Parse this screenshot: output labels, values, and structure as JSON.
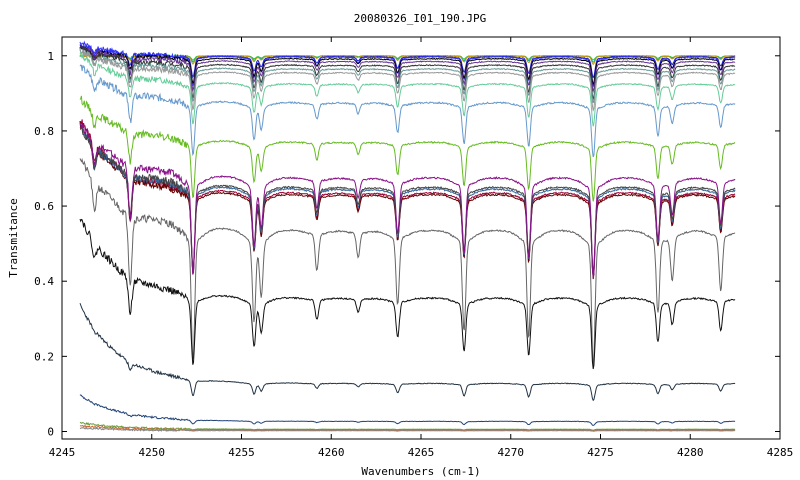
{
  "chart_data": {
    "type": "line",
    "title": "20080326_I01_190.JPG",
    "xlabel": "Wavenumbers (cm-1)",
    "ylabel": "Transmitance",
    "xlim": [
      4245,
      4285
    ],
    "ylim": [
      -0.02,
      1.05
    ],
    "xticks": [
      4245,
      4250,
      4255,
      4260,
      4265,
      4270,
      4275,
      4280,
      4285
    ],
    "yticks": [
      0,
      0.2,
      0.4,
      0.6,
      0.8,
      1
    ],
    "ytick_labels": [
      "0",
      "0.2",
      "0.4",
      "0.6",
      "0.8",
      "1"
    ],
    "grid": false,
    "legend": "none",
    "x_range": [
      4246,
      4282.5
    ],
    "absorption_lines": [
      {
        "x": 4246.8,
        "depth": 0.25
      },
      {
        "x": 4248.8,
        "depth": 0.55
      },
      {
        "x": 4252.3,
        "depth": 1.0
      },
      {
        "x": 4255.7,
        "depth": 0.65
      },
      {
        "x": 4256.1,
        "depth": 0.45
      },
      {
        "x": 4259.2,
        "depth": 0.3
      },
      {
        "x": 4261.5,
        "depth": 0.2
      },
      {
        "x": 4263.7,
        "depth": 0.55
      },
      {
        "x": 4267.4,
        "depth": 0.75
      },
      {
        "x": 4271.0,
        "depth": 0.8
      },
      {
        "x": 4274.6,
        "depth": 1.0
      },
      {
        "x": 4278.2,
        "depth": 0.6
      },
      {
        "x": 4279.0,
        "depth": 0.35
      },
      {
        "x": 4281.7,
        "depth": 0.45
      }
    ],
    "series": [
      {
        "color": "#33cc33",
        "level": 1.0,
        "depth": 0.01,
        "start": 0.0
      },
      {
        "color": "#00aaaa",
        "level": 1.0,
        "depth": 0.015,
        "start": 0.0
      },
      {
        "color": "#cc9900",
        "level": 1.0,
        "depth": 0.02,
        "start": 0.0
      },
      {
        "color": "#1f1fcc",
        "level": 0.998,
        "depth": 0.05,
        "start": 0.03
      },
      {
        "color": "#3333ff",
        "level": 0.997,
        "depth": 0.07,
        "start": 0.04
      },
      {
        "color": "#000000",
        "level": 0.992,
        "depth": 0.06,
        "start": 0.03
      },
      {
        "color": "#663399",
        "level": 0.985,
        "depth": 0.07,
        "start": 0.04
      },
      {
        "color": "#333333",
        "level": 0.975,
        "depth": 0.08,
        "start": 0.05
      },
      {
        "color": "#669999",
        "level": 0.965,
        "depth": 0.08,
        "start": 0.05
      },
      {
        "color": "#999999",
        "level": 0.955,
        "depth": 0.09,
        "start": 0.06
      },
      {
        "color": "#66cc99",
        "level": 0.925,
        "depth": 0.1,
        "start": 0.08
      },
      {
        "color": "#6699cc",
        "level": 0.875,
        "depth": 0.13,
        "start": 0.1
      },
      {
        "color": "#66bb22",
        "level": 0.77,
        "depth": 0.14,
        "start": 0.12
      },
      {
        "color": "#990033",
        "level": 0.635,
        "depth": 0.2,
        "start": 0.2
      },
      {
        "color": "#660000",
        "level": 0.63,
        "depth": 0.2,
        "start": 0.19
      },
      {
        "color": "#336699",
        "level": 0.645,
        "depth": 0.21,
        "start": 0.17
      },
      {
        "color": "#444444",
        "level": 0.65,
        "depth": 0.2,
        "start": 0.16
      },
      {
        "color": "#881188",
        "level": 0.675,
        "depth": 0.24,
        "start": 0.15
      },
      {
        "color": "#666666",
        "level": 0.535,
        "depth": 0.32,
        "start": 0.2
      },
      {
        "color": "#111111",
        "level": 0.355,
        "depth": 0.17,
        "start": 0.22
      },
      {
        "color": "#223344",
        "level": 0.128,
        "depth": 0.04,
        "start": 0.21
      },
      {
        "color": "#224477",
        "level": 0.027,
        "depth": 0.01,
        "start": 0.07
      },
      {
        "color": "#669933",
        "level": 0.006,
        "depth": 0.002,
        "start": 0.018
      },
      {
        "color": "#cc6633",
        "level": 0.004,
        "depth": 0.002,
        "start": 0.012
      },
      {
        "color": "#888888",
        "level": 0.002,
        "depth": 0.001,
        "start": 0.008
      }
    ]
  }
}
